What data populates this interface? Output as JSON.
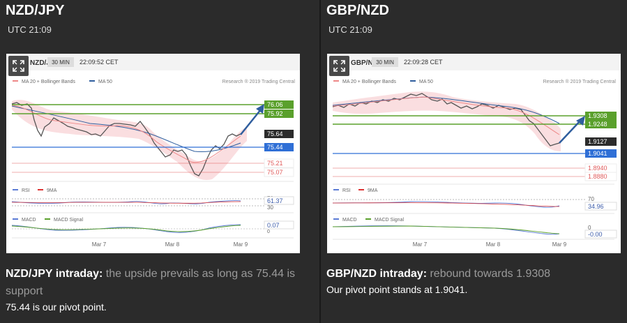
{
  "panels": [
    {
      "pair": "NZD/JPY",
      "time": "UTC 21:09",
      "chart": {
        "pair_label": "NZD/JPY",
        "interval": "30 MIN",
        "clock": "22:09:52 CET",
        "legend_ma20": "MA 20 + Bollinger Bands",
        "legend_ma50": "MA 50",
        "credit": "Research ® 2019 Trading Central",
        "levels": [
          "76.06",
          "75.92",
          "75.64",
          "75.44",
          "75.21",
          "75.07"
        ],
        "rsi_label": "RSI",
        "rsi_ma_label": "9MA",
        "rsi_value": "61.37",
        "rsi_levels": [
          "70",
          "30"
        ],
        "macd_label": "MACD",
        "macd_signal_label": "MACD Signal",
        "macd_value": "0.07",
        "macd_zero": "0",
        "x_ticks": [
          "Mar 7",
          "Mar 8",
          "Mar 9"
        ]
      },
      "headline": "NZD/JPY intraday:",
      "summary": "the upside prevails as long as 75.44 is support",
      "note": "75.44 is our pivot point."
    },
    {
      "pair": "GBP/NZD",
      "time": "UTC 21:09",
      "chart": {
        "pair_label": "GBP/NZD",
        "interval": "30 MIN",
        "clock": "22:09:28 CET",
        "legend_ma20": "MA 20 + Bollinger Bands",
        "legend_ma50": "MA 50",
        "credit": "Research ® 2019 Trading Central",
        "levels": [
          "1.9308",
          "1.9248",
          "1.9127",
          "1.9041",
          "1.8940",
          "1.8880"
        ],
        "rsi_label": "RSI",
        "rsi_ma_label": "9MA",
        "rsi_value": "34.96",
        "rsi_levels": [
          "70"
        ],
        "macd_label": "MACD",
        "macd_signal_label": "MACD Signal",
        "macd_value": "-0.00",
        "macd_zero": "0",
        "x_ticks": [
          "Mar 7",
          "Mar 8",
          "Mar 9"
        ]
      },
      "headline": "GBP/NZD intraday:",
      "summary": "rebound towards 1.9308",
      "note": "Our pivot point stands at 1.9041."
    }
  ],
  "colors": {
    "green_level": "#5aa02c",
    "blue_level": "#2f6fd6",
    "red_level": "#e05a5a",
    "dark_level": "#2b2b2b",
    "arrow": "#2f5e9e",
    "band": "#fadadd"
  }
}
